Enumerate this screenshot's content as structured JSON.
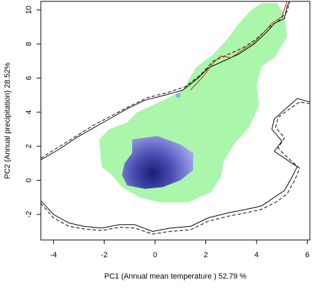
{
  "chart_data": {
    "type": "heatmap",
    "xlabel": "PC1 (Annual mean temperature ) 52.79 %",
    "ylabel": "PC2 (Annual precipitation) 28.52%",
    "xlim": [
      -4.5,
      6.1
    ],
    "ylim": [
      -3.5,
      10.5
    ],
    "x_ticks": [
      -4,
      -2,
      0,
      2,
      4,
      6
    ],
    "y_ticks": [
      -2,
      0,
      2,
      4,
      6,
      8,
      10
    ],
    "grid": false,
    "colors": {
      "background_niche": "#aaf6aa",
      "density_low": "#9fa2ee",
      "density_high": "#1a1d78",
      "envelope_solid": "#000000",
      "envelope_dashed": "#000000",
      "envelope_red": "#cc2200"
    },
    "niche_region": {
      "name": "",
      "polygon": [
        [
          4.2,
          10.4
        ],
        [
          4.8,
          10.4
        ],
        [
          5.1,
          9.7
        ],
        [
          5.2,
          8.4
        ],
        [
          4.7,
          7.2
        ],
        [
          4.2,
          6.7
        ],
        [
          4.0,
          5.6
        ],
        [
          4.1,
          4.4
        ],
        [
          3.7,
          3.1
        ],
        [
          3.1,
          2.1
        ],
        [
          2.7,
          1.1
        ],
        [
          2.6,
          0.2
        ],
        [
          2.2,
          -0.7
        ],
        [
          1.3,
          -1.3
        ],
        [
          0.2,
          -1.3
        ],
        [
          -0.6,
          -1.0
        ],
        [
          -1.3,
          -0.4
        ],
        [
          -1.7,
          0.3
        ],
        [
          -2.1,
          0.8
        ],
        [
          -2.2,
          2.4
        ],
        [
          -1.8,
          3.0
        ],
        [
          -1.1,
          3.4
        ],
        [
          -0.7,
          4.0
        ],
        [
          0.2,
          4.6
        ],
        [
          1.1,
          5.3
        ],
        [
          1.6,
          6.6
        ],
        [
          2.3,
          7.4
        ],
        [
          2.8,
          8.2
        ],
        [
          3.3,
          9.2
        ],
        [
          3.8,
          10.0
        ]
      ]
    },
    "density_peak": {
      "x": -0.1,
      "y": 0.4,
      "value": 1.0
    },
    "density_region": {
      "polygon": [
        [
          -0.9,
          2.4
        ],
        [
          0.1,
          2.6
        ],
        [
          1.0,
          2.1
        ],
        [
          1.5,
          1.6
        ],
        [
          1.5,
          0.6
        ],
        [
          1.0,
          0.0
        ],
        [
          0.3,
          -0.4
        ],
        [
          -0.4,
          -0.5
        ],
        [
          -1.1,
          -0.3
        ],
        [
          -1.3,
          0.3
        ],
        [
          -1.2,
          1.0
        ],
        [
          -0.9,
          1.6
        ]
      ]
    },
    "extra_patch": {
      "x": 0.9,
      "y": 5.0
    },
    "envelope_lines": [
      {
        "style": "solid",
        "color": "#000000",
        "points": [
          [
            -4.5,
            1.2
          ],
          [
            -3.8,
            1.8
          ],
          [
            -3.1,
            2.5
          ],
          [
            -2.4,
            3.1
          ],
          [
            -1.8,
            3.6
          ],
          [
            -1.1,
            4.2
          ],
          [
            -0.4,
            4.7
          ],
          [
            0.4,
            5.0
          ],
          [
            1.1,
            5.3
          ],
          [
            1.7,
            6.0
          ],
          [
            2.1,
            6.6
          ],
          [
            2.7,
            7.0
          ],
          [
            3.3,
            7.4
          ],
          [
            3.9,
            8.0
          ],
          [
            4.4,
            8.7
          ],
          [
            4.7,
            9.2
          ],
          [
            5.1,
            9.5
          ],
          [
            5.2,
            10.2
          ],
          [
            5.3,
            10.5
          ]
        ]
      },
      {
        "style": "dashed",
        "color": "#000000",
        "points": [
          [
            -4.5,
            1.3
          ],
          [
            -3.8,
            1.95
          ],
          [
            -3.1,
            2.6
          ],
          [
            -2.4,
            3.25
          ],
          [
            -1.7,
            3.8
          ],
          [
            -1.0,
            4.35
          ],
          [
            -0.3,
            4.85
          ],
          [
            0.5,
            5.15
          ],
          [
            1.2,
            5.5
          ],
          [
            1.8,
            6.2
          ],
          [
            2.3,
            7.0
          ],
          [
            2.9,
            7.4
          ],
          [
            3.5,
            7.8
          ],
          [
            4.0,
            8.3
          ],
          [
            4.5,
            9.0
          ],
          [
            4.9,
            9.4
          ],
          [
            5.2,
            9.9
          ],
          [
            5.3,
            10.5
          ]
        ]
      },
      {
        "style": "solid",
        "color": "#000000",
        "points": [
          [
            -4.5,
            -1.2
          ],
          [
            -4.0,
            -2.0
          ],
          [
            -3.4,
            -2.5
          ],
          [
            -2.8,
            -2.7
          ],
          [
            -2.1,
            -2.8
          ],
          [
            -1.4,
            -2.6
          ],
          [
            -0.8,
            -2.6
          ],
          [
            -0.1,
            -3.0
          ],
          [
            0.6,
            -2.8
          ],
          [
            1.4,
            -2.7
          ],
          [
            2.1,
            -2.2
          ],
          [
            2.9,
            -1.9
          ],
          [
            3.6,
            -1.7
          ],
          [
            4.2,
            -1.5
          ],
          [
            4.7,
            -1.0
          ],
          [
            5.1,
            -0.6
          ],
          [
            5.4,
            0.2
          ],
          [
            5.6,
            0.8
          ],
          [
            5.0,
            1.4
          ],
          [
            4.7,
            1.7
          ],
          [
            5.0,
            2.3
          ],
          [
            4.6,
            3.0
          ],
          [
            4.7,
            3.6
          ],
          [
            5.3,
            4.4
          ],
          [
            5.6,
            4.8
          ],
          [
            6.1,
            4.6
          ]
        ]
      },
      {
        "style": "dashed",
        "color": "#000000",
        "points": [
          [
            -4.5,
            -1.35
          ],
          [
            -4.0,
            -2.2
          ],
          [
            -3.4,
            -2.7
          ],
          [
            -2.8,
            -2.85
          ],
          [
            -2.1,
            -2.95
          ],
          [
            -1.4,
            -2.75
          ],
          [
            -0.8,
            -2.8
          ],
          [
            -0.1,
            -3.15
          ],
          [
            0.6,
            -3.0
          ],
          [
            1.4,
            -2.9
          ],
          [
            2.1,
            -2.4
          ],
          [
            2.9,
            -2.1
          ],
          [
            3.6,
            -1.9
          ],
          [
            4.2,
            -1.7
          ],
          [
            4.8,
            -1.25
          ],
          [
            5.2,
            -0.8
          ],
          [
            5.5,
            0.0
          ],
          [
            5.7,
            0.7
          ],
          [
            5.1,
            1.5
          ],
          [
            4.85,
            1.9
          ],
          [
            5.1,
            2.5
          ],
          [
            4.75,
            3.1
          ],
          [
            4.85,
            3.7
          ],
          [
            5.4,
            4.3
          ],
          [
            5.7,
            4.6
          ],
          [
            6.1,
            4.5
          ]
        ]
      },
      {
        "style": "solid",
        "color": "#cc2200",
        "points": [
          [
            1.4,
            5.3
          ],
          [
            1.9,
            6.1
          ],
          [
            2.3,
            6.9
          ],
          [
            2.6,
            7.3
          ],
          [
            3.0,
            7.2
          ],
          [
            3.4,
            7.6
          ],
          [
            3.9,
            8.1
          ],
          [
            4.3,
            8.7
          ],
          [
            4.6,
            9.2
          ],
          [
            5.0,
            9.6
          ],
          [
            5.2,
            10.5
          ]
        ]
      }
    ]
  }
}
